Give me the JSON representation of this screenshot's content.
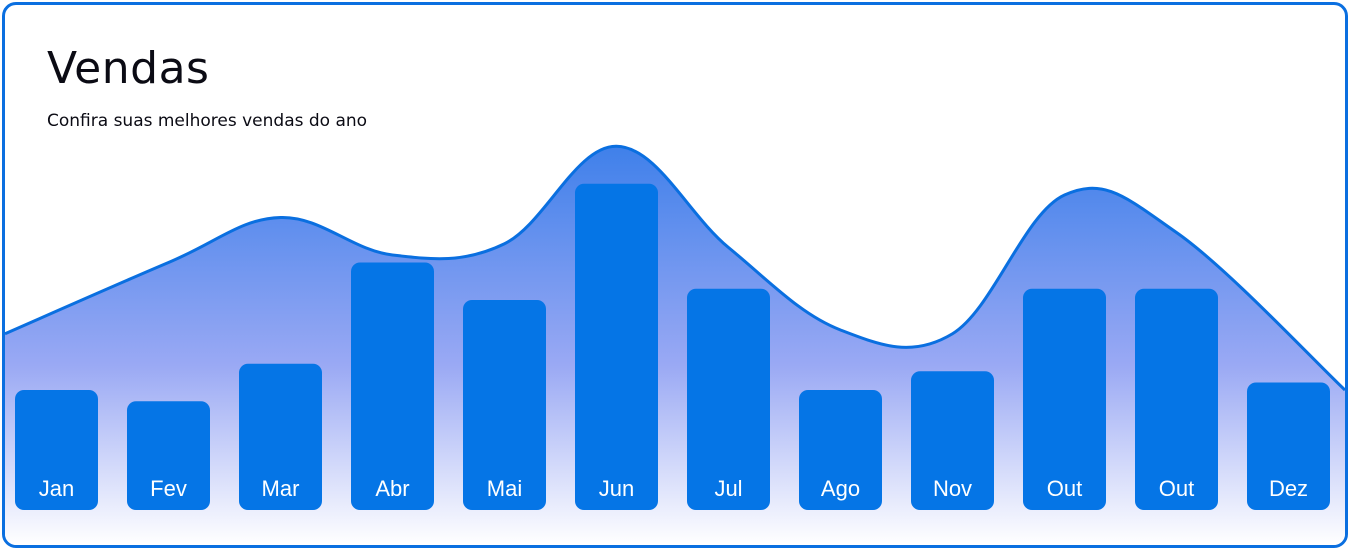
{
  "header": {
    "title": "Vendas",
    "subtitle": "Confira suas melhores vendas do ano"
  },
  "colors": {
    "bar": "#0575e6",
    "border": "#0a6fe0",
    "curve_stroke": "#0a6fe0",
    "area_top": "#3f80ea",
    "area_bottom": "#ffffff"
  },
  "chart_data": {
    "type": "bar",
    "categories": [
      "Jan",
      "Fev",
      "Mar",
      "Abr",
      "Mai",
      "Jun",
      "Jul",
      "Ago",
      "Nov",
      "Out",
      "Out",
      "Dez"
    ],
    "values": [
      32,
      29,
      39,
      66,
      56,
      87,
      59,
      32,
      37,
      59,
      59,
      34
    ],
    "ylim": [
      0,
      100
    ],
    "trend": {
      "type": "area",
      "values": [
        47,
        66,
        78,
        68,
        71,
        97,
        70,
        48,
        47,
        84,
        74,
        32
      ]
    },
    "title": "Vendas",
    "subtitle": "Confira suas melhores vendas do ano",
    "grid": false,
    "legend": "none"
  }
}
